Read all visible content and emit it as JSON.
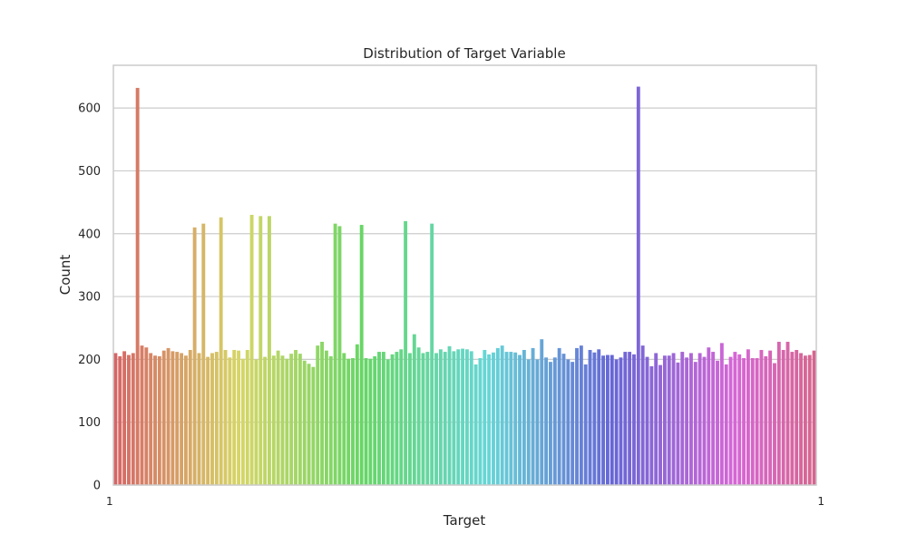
{
  "chart_data": {
    "type": "bar",
    "title": "Distribution of Target Variable",
    "xlabel": "Target",
    "ylabel": "Count",
    "ylim": [
      0,
      668
    ],
    "yticks": [
      0,
      100,
      200,
      300,
      400,
      500,
      600
    ],
    "grid": true,
    "legend": "none",
    "xtick_labels_overlap": true,
    "values": [
      210,
      205,
      213,
      207,
      210,
      632,
      222,
      219,
      210,
      206,
      205,
      214,
      218,
      213,
      212,
      210,
      206,
      215,
      410,
      210,
      416,
      204,
      210,
      212,
      426,
      215,
      203,
      215,
      214,
      201,
      215,
      430,
      200,
      428,
      204,
      428,
      206,
      214,
      206,
      201,
      209,
      215,
      209,
      198,
      193,
      188,
      222,
      228,
      214,
      205,
      416,
      412,
      210,
      201,
      202,
      224,
      414,
      202,
      201,
      205,
      212,
      212,
      200,
      208,
      212,
      216,
      420,
      210,
      240,
      219,
      210,
      212,
      416,
      210,
      216,
      212,
      221,
      213,
      216,
      217,
      216,
      213,
      192,
      202,
      215,
      208,
      211,
      218,
      222,
      212,
      212,
      211,
      207,
      215,
      200,
      218,
      200,
      232,
      203,
      196,
      203,
      218,
      209,
      200,
      196,
      218,
      222,
      192,
      215,
      211,
      216,
      206,
      207,
      207,
      200,
      203,
      212,
      212,
      208,
      634,
      222,
      204,
      189,
      210,
      191,
      206,
      206,
      210,
      195,
      212,
      203,
      210,
      196,
      210,
      204,
      219,
      212,
      198,
      226,
      192,
      204,
      212,
      208,
      202,
      216,
      202,
      202,
      215,
      205,
      214,
      194,
      228,
      215,
      228,
      212,
      215,
      210,
      206,
      207,
      214
    ],
    "x_tick_visible_fragments": [
      "1",
      "1"
    ]
  }
}
